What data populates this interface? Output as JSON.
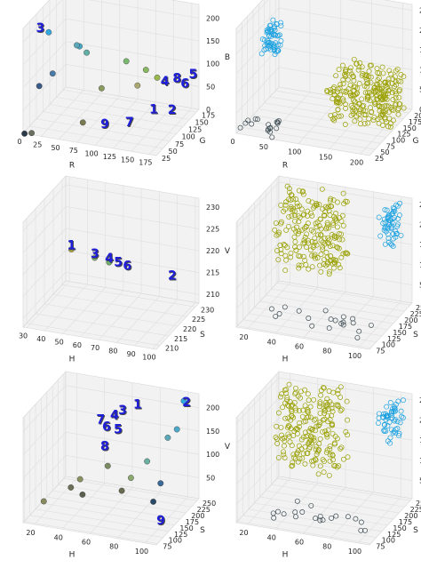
{
  "chart_data": [
    {
      "type": "scatter",
      "projection": "3d",
      "title": "",
      "xlabel": "R",
      "ylabel": "G",
      "zlabel": "B",
      "xticks": [
        "0",
        "25",
        "50",
        "75",
        "100",
        "125",
        "150",
        "175"
      ],
      "yticks": [
        "25",
        "50",
        "75",
        "100",
        "125",
        "150",
        "175"
      ],
      "zticks": [
        "0",
        "50",
        "100",
        "150",
        "200"
      ],
      "xlim": [
        0,
        185
      ],
      "ylim": [
        25,
        185
      ],
      "zlim": [
        0,
        230
      ],
      "labels": [
        {
          "text": "3",
          "x": 22,
          "y": 30,
          "z": 225
        },
        {
          "text": "4",
          "x": 145,
          "y": 165,
          "z": 55
        },
        {
          "text": "8",
          "x": 160,
          "y": 170,
          "z": 62
        },
        {
          "text": "6",
          "x": 168,
          "y": 178,
          "z": 48
        },
        {
          "text": "5",
          "x": 178,
          "y": 182,
          "z": 68
        },
        {
          "text": "1",
          "x": 135,
          "y": 150,
          "z": 0
        },
        {
          "text": "2",
          "x": 155,
          "y": 165,
          "z": -5
        },
        {
          "text": "9",
          "x": 95,
          "y": 75,
          "z": 5
        },
        {
          "text": "7",
          "x": 120,
          "y": 100,
          "z": 0
        }
      ],
      "points": [
        {
          "x": 30,
          "y": 40,
          "z": 220,
          "c": "#35a8e0"
        },
        {
          "x": 60,
          "y": 75,
          "z": 175,
          "c": "#4aa8c8"
        },
        {
          "x": 68,
          "y": 80,
          "z": 160,
          "c": "#60b0a8"
        },
        {
          "x": 58,
          "y": 70,
          "z": 180,
          "c": "#5aa8b8"
        },
        {
          "x": 110,
          "y": 115,
          "z": 130,
          "c": "#7ab870"
        },
        {
          "x": 128,
          "y": 140,
          "z": 100,
          "c": "#8ab860"
        },
        {
          "x": 140,
          "y": 150,
          "z": 80,
          "c": "#9ab850"
        },
        {
          "x": 30,
          "y": 55,
          "z": 120,
          "c": "#4a7aa8"
        },
        {
          "x": 15,
          "y": 45,
          "z": 95,
          "c": "#3a5a88"
        },
        {
          "x": 85,
          "y": 90,
          "z": 80,
          "c": "#8a9a60"
        },
        {
          "x": 2,
          "y": 25,
          "z": 0,
          "c": "#2a3a48"
        },
        {
          "x": 10,
          "y": 30,
          "z": 0,
          "c": "#6a7060"
        },
        {
          "x": 70,
          "y": 60,
          "z": 20,
          "c": "#7a7a50"
        },
        {
          "x": 120,
          "y": 130,
          "z": 70,
          "c": "#a8a870"
        }
      ]
    },
    {
      "type": "scatter",
      "projection": "3d",
      "title": "",
      "xlabel": "R",
      "ylabel": "G",
      "zlabel": "B",
      "xticks": [
        "0",
        "50",
        "100",
        "150",
        "200"
      ],
      "yticks": [
        "25",
        "50",
        "75",
        "100",
        "125",
        "150",
        "175",
        "200"
      ],
      "zticks": [
        "0",
        "50",
        "100",
        "150",
        "200",
        "250"
      ],
      "xlim": [
        0,
        215
      ],
      "ylim": [
        25,
        215
      ],
      "zlim": [
        0,
        265
      ],
      "clusters": [
        {
          "name": "cyan",
          "x": [
            30,
            55
          ],
          "y": [
            45,
            85
          ],
          "z": [
            185,
            260
          ],
          "color": "#1aa0e0",
          "n": 60
        },
        {
          "name": "olive",
          "x": [
            110,
            210
          ],
          "y": [
            120,
            210
          ],
          "z": [
            0,
            110
          ],
          "color": "#9aa000",
          "n": 260
        },
        {
          "name": "dark",
          "x": [
            0,
            60
          ],
          "y": [
            25,
            70
          ],
          "z": [
            0,
            30
          ],
          "color": "#3a4a50",
          "n": 18
        }
      ]
    },
    {
      "type": "scatter",
      "projection": "3d",
      "title": "",
      "xlabel": "H",
      "ylabel": "S",
      "zlabel": "V",
      "xticks": [
        "30",
        "40",
        "50",
        "60",
        "70",
        "80",
        "90",
        "100"
      ],
      "yticks": [
        "210",
        "215",
        "220",
        "225",
        "230"
      ],
      "zticks": [
        "210",
        "215",
        "220",
        "225",
        "230"
      ],
      "xlim": [
        28,
        102
      ],
      "ylim": [
        208,
        232
      ],
      "zlim": [
        208,
        232
      ],
      "labels": [
        {
          "text": "1",
          "x": 42,
          "y": 221,
          "z": 221
        },
        {
          "text": "3",
          "x": 55,
          "y": 221,
          "z": 220
        },
        {
          "text": "4",
          "x": 63,
          "y": 221,
          "z": 219.5
        },
        {
          "text": "5",
          "x": 68,
          "y": 221,
          "z": 219
        },
        {
          "text": "6",
          "x": 73,
          "y": 221,
          "z": 218.5
        },
        {
          "text": "2",
          "x": 98,
          "y": 221,
          "z": 218
        }
      ],
      "points": [
        {
          "x": 42,
          "y": 221,
          "z": 221,
          "c": "#b8b040"
        },
        {
          "x": 55,
          "y": 221,
          "z": 220,
          "c": "#80b070"
        },
        {
          "x": 63,
          "y": 221,
          "z": 219.5,
          "c": "#70b068"
        }
      ]
    },
    {
      "type": "scatter",
      "projection": "3d",
      "title": "",
      "xlabel": "H",
      "ylabel": "S",
      "zlabel": "V",
      "xticks": [
        "20",
        "40",
        "60",
        "80",
        "100"
      ],
      "yticks": [
        "75",
        "100",
        "125",
        "150",
        "175",
        "200",
        "225",
        "250"
      ],
      "zticks": [
        "50",
        "100",
        "150",
        "200",
        "250"
      ],
      "xlim": [
        12,
        108
      ],
      "ylim": [
        70,
        258
      ],
      "zlim": [
        5,
        265
      ],
      "clusters": [
        {
          "name": "olive",
          "x": [
            20,
            65
          ],
          "y": [
            175,
            255
          ],
          "z": [
            80,
            260
          ],
          "color": "#98a000",
          "n": 220
        },
        {
          "name": "cyan",
          "x": [
            92,
            104
          ],
          "y": [
            200,
            250
          ],
          "z": [
            170,
            255
          ],
          "color": "#1aa0e0",
          "n": 55
        },
        {
          "name": "dark",
          "x": [
            30,
            104
          ],
          "y": [
            75,
            110
          ],
          "z": [
            20,
            60
          ],
          "color": "#3a4a50",
          "n": 20
        }
      ]
    },
    {
      "type": "scatter",
      "projection": "3d",
      "title": "",
      "xlabel": "H",
      "ylabel": "S",
      "zlabel": "V",
      "xticks": [
        "20",
        "40",
        "60",
        "80",
        "100"
      ],
      "yticks": [
        "75",
        "100",
        "125",
        "150",
        "175",
        "200",
        "225",
        "250"
      ],
      "zticks": [
        "50",
        "100",
        "150",
        "200"
      ],
      "xlim": [
        12,
        108
      ],
      "ylim": [
        70,
        258
      ],
      "zlim": [
        5,
        230
      ],
      "labels": [
        {
          "text": "2",
          "x": 102,
          "y": 240,
          "z": 210
        },
        {
          "text": "1",
          "x": 70,
          "y": 220,
          "z": 200
        },
        {
          "text": "3",
          "x": 60,
          "y": 215,
          "z": 185
        },
        {
          "text": "4",
          "x": 55,
          "y": 210,
          "z": 175
        },
        {
          "text": "7",
          "x": 45,
          "y": 210,
          "z": 160
        },
        {
          "text": "6",
          "x": 50,
          "y": 205,
          "z": 150
        },
        {
          "text": "5",
          "x": 60,
          "y": 195,
          "z": 155
        },
        {
          "text": "8",
          "x": 52,
          "y": 185,
          "z": 120
        },
        {
          "text": "9",
          "x": 103,
          "y": 120,
          "z": 20
        }
      ],
      "points": [
        {
          "x": 100,
          "y": 240,
          "z": 220,
          "c": "#35a8e0"
        },
        {
          "x": 100,
          "y": 210,
          "z": 175,
          "c": "#4aa8c8"
        },
        {
          "x": 95,
          "y": 200,
          "z": 160,
          "c": "#5aa8b8"
        },
        {
          "x": 85,
          "y": 170,
          "z": 120,
          "c": "#6ab0a0"
        },
        {
          "x": 98,
          "y": 150,
          "z": 90,
          "c": "#3a6a98"
        },
        {
          "x": 96,
          "y": 130,
          "z": 60,
          "c": "#2a4a68"
        },
        {
          "x": 55,
          "y": 180,
          "z": 90,
          "c": "#7a8a60"
        },
        {
          "x": 40,
          "y": 150,
          "z": 70,
          "c": "#8a9060"
        },
        {
          "x": 35,
          "y": 140,
          "z": 55,
          "c": "#6a7058"
        },
        {
          "x": 70,
          "y": 150,
          "z": 60,
          "c": "#6a6a50"
        },
        {
          "x": 22,
          "y": 100,
          "z": 40,
          "c": "#8a8a60"
        },
        {
          "x": 45,
          "y": 130,
          "z": 50,
          "c": "#5a6050"
        },
        {
          "x": 75,
          "y": 160,
          "z": 85,
          "c": "#8aa870"
        }
      ]
    },
    {
      "type": "scatter",
      "projection": "3d",
      "title": "",
      "xlabel": "H",
      "ylabel": "S",
      "zlabel": "V",
      "xticks": [
        "20",
        "40",
        "60",
        "80",
        "100"
      ],
      "yticks": [
        "75",
        "100",
        "125",
        "150",
        "175",
        "200",
        "225",
        "250"
      ],
      "zticks": [
        "50",
        "100",
        "150",
        "200",
        "250"
      ],
      "xlim": [
        12,
        108
      ],
      "ylim": [
        70,
        258
      ],
      "zlim": [
        5,
        265
      ],
      "clusters": [
        {
          "name": "olive",
          "x": [
            20,
            65
          ],
          "y": [
            175,
            255
          ],
          "z": [
            80,
            260
          ],
          "color": "#98a000",
          "n": 220
        },
        {
          "name": "cyan",
          "x": [
            92,
            104
          ],
          "y": [
            200,
            250
          ],
          "z": [
            170,
            255
          ],
          "color": "#1aa0e0",
          "n": 55
        },
        {
          "name": "dark",
          "x": [
            30,
            104
          ],
          "y": [
            75,
            110
          ],
          "z": [
            20,
            60
          ],
          "color": "#3a4a50",
          "n": 20
        }
      ]
    }
  ]
}
